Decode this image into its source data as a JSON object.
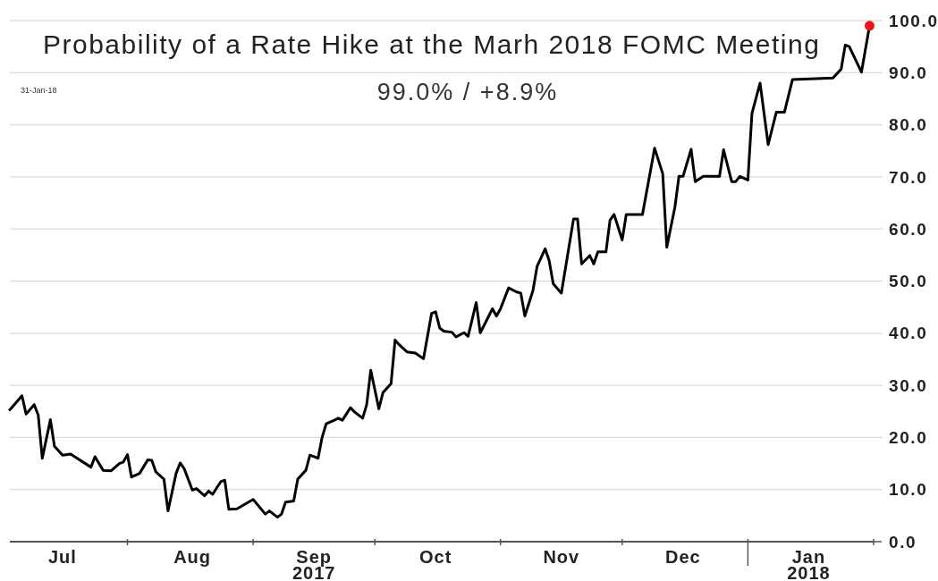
{
  "chart_data": {
    "type": "line",
    "title": "Probability of a Rate Hike at the Marh 2018 FOMC Meeting",
    "annotations": [
      "31-Jan-18",
      "99.0% / +8.9%"
    ],
    "xlim": [
      "2017-07-03",
      "2018-02-01"
    ],
    "xticks": [
      {
        "value": "2017-07-16",
        "label": "Jul"
      },
      {
        "value": "2017-08-01",
        "label": null
      },
      {
        "value": "2017-08-17",
        "label": "Aug"
      },
      {
        "value": "2017-09-01",
        "label": null
      },
      {
        "value": "2017-09-16",
        "label": "Sep\n2017"
      },
      {
        "value": "2017-10-01",
        "label": null
      },
      {
        "value": "2017-10-16",
        "label": "Oct"
      },
      {
        "value": "2017-11-01",
        "label": null
      },
      {
        "value": "2017-11-16",
        "label": "Nov"
      },
      {
        "value": "2017-12-01",
        "label": null
      },
      {
        "value": "2017-12-16",
        "label": "Dec"
      },
      {
        "value": "2018-01-01",
        "label": null
      },
      {
        "value": "2018-01-16",
        "label": "Jan\n2018"
      },
      {
        "value": "2018-02-01",
        "label": null
      }
    ],
    "ylim": [
      0,
      100
    ],
    "yticks": [
      {
        "value": 0,
        "label": "0.0"
      },
      {
        "value": 10,
        "label": "10.0"
      },
      {
        "value": 20,
        "label": "20.0"
      },
      {
        "value": 30,
        "label": "30.0"
      },
      {
        "value": 40,
        "label": "40.0"
      },
      {
        "value": 50,
        "label": "50.0"
      },
      {
        "value": 60,
        "label": "60.0"
      },
      {
        "value": 70,
        "label": "70.0"
      },
      {
        "value": 80,
        "label": "80.0"
      },
      {
        "value": 90,
        "label": "90.0"
      },
      {
        "value": 100,
        "label": "100.0"
      }
    ],
    "grid": "y",
    "series": [
      {
        "color": "#000000",
        "x": [
          "2017-07-03",
          "2017-07-06",
          "2017-07-07",
          "2017-07-09",
          "2017-07-10",
          "2017-07-11",
          "2017-07-13",
          "2017-07-14",
          "2017-07-16",
          "2017-07-18",
          "2017-07-23",
          "2017-07-24",
          "2017-07-26",
          "2017-07-28",
          "2017-07-30",
          "2017-07-31",
          "2017-08-01",
          "2017-08-02",
          "2017-08-04",
          "2017-08-06",
          "2017-08-07",
          "2017-08-08",
          "2017-08-10",
          "2017-08-11",
          "2017-08-13",
          "2017-08-14",
          "2017-08-15",
          "2017-08-17",
          "2017-08-18",
          "2017-08-20",
          "2017-08-21",
          "2017-08-22",
          "2017-08-24",
          "2017-08-25",
          "2017-08-26",
          "2017-08-28",
          "2017-09-01",
          "2017-09-04",
          "2017-09-05",
          "2017-09-07",
          "2017-09-08",
          "2017-09-09",
          "2017-09-11",
          "2017-09-12",
          "2017-09-14",
          "2017-09-15",
          "2017-09-17",
          "2017-09-18",
          "2017-09-19",
          "2017-09-21",
          "2017-09-22",
          "2017-09-23",
          "2017-09-25",
          "2017-09-26",
          "2017-09-28",
          "2017-09-29",
          "2017-09-30",
          "2017-10-02",
          "2017-10-03",
          "2017-10-05",
          "2017-10-06",
          "2017-10-07",
          "2017-10-09",
          "2017-10-11",
          "2017-10-13",
          "2017-10-15",
          "2017-10-16",
          "2017-10-17",
          "2017-10-18",
          "2017-10-20",
          "2017-10-21",
          "2017-10-23",
          "2017-10-24",
          "2017-10-26",
          "2017-10-27",
          "2017-10-28",
          "2017-10-30",
          "2017-10-31",
          "2017-11-01",
          "2017-11-03",
          "2017-11-05",
          "2017-11-06",
          "2017-11-07",
          "2017-11-09",
          "2017-11-10",
          "2017-11-12",
          "2017-11-13",
          "2017-11-14",
          "2017-11-16",
          "2017-11-19",
          "2017-11-20",
          "2017-11-21",
          "2017-11-23",
          "2017-11-24",
          "2017-11-25",
          "2017-11-27",
          "2017-11-28",
          "2017-11-29",
          "2017-12-01",
          "2017-12-02",
          "2017-12-06",
          "2017-12-09",
          "2017-12-11",
          "2017-12-12",
          "2017-12-14",
          "2017-12-15",
          "2017-12-16",
          "2017-12-18",
          "2017-12-19",
          "2017-12-21",
          "2017-12-25",
          "2017-12-26",
          "2017-12-28",
          "2017-12-29",
          "2017-12-30",
          "2018-01-01",
          "2018-01-02",
          "2018-01-04",
          "2018-01-06",
          "2018-01-08",
          "2018-01-10",
          "2018-01-12",
          "2018-01-22",
          "2018-01-24",
          "2018-01-25",
          "2018-01-26",
          "2018-01-29",
          "2018-01-31"
        ],
        "values": [
          25.3,
          28.0,
          24.5,
          26.3,
          24.3,
          16.0,
          23.4,
          18.3,
          16.6,
          16.8,
          14.3,
          16.3,
          13.7,
          13.6,
          15.0,
          15.3,
          16.7,
          12.4,
          13.1,
          15.7,
          15.6,
          13.4,
          12.0,
          5.9,
          13.1,
          15.1,
          14.0,
          9.9,
          10.2,
          8.8,
          9.7,
          9.1,
          11.5,
          11.8,
          6.2,
          6.3,
          8.1,
          5.3,
          5.9,
          4.7,
          5.3,
          7.6,
          7.8,
          12.0,
          13.7,
          16.6,
          16.0,
          20.0,
          22.6,
          23.3,
          23.7,
          23.3,
          25.7,
          24.9,
          23.7,
          26.3,
          32.9,
          25.5,
          28.6,
          30.3,
          38.7,
          37.8,
          36.4,
          36.2,
          35.1,
          43.8,
          44.1,
          41.0,
          40.4,
          40.2,
          39.3,
          40.1,
          39.4,
          45.9,
          40.1,
          41.6,
          44.7,
          43.3,
          44.7,
          48.7,
          47.9,
          47.7,
          43.3,
          48.2,
          52.8,
          56.2,
          53.9,
          49.5,
          47.7,
          61.9,
          61.9,
          53.3,
          54.9,
          53.3,
          55.6,
          55.6,
          61.7,
          62.8,
          57.9,
          62.8,
          62.8,
          75.5,
          70.6,
          56.5,
          64.2,
          70.1,
          70.1,
          75.3,
          69.1,
          70.1,
          70.1,
          75.2,
          69.1,
          69.1,
          70.1,
          69.4,
          82.2,
          88.0,
          76.2,
          82.4,
          82.4,
          88.7,
          89.0,
          90.7,
          95.3,
          95.0,
          90.1,
          99.0
        ]
      },
      {
        "type": "scatter",
        "color": "#e8141c",
        "marker": "circle",
        "x": [
          "2018-01-31"
        ],
        "values": [
          99.0
        ]
      }
    ]
  }
}
